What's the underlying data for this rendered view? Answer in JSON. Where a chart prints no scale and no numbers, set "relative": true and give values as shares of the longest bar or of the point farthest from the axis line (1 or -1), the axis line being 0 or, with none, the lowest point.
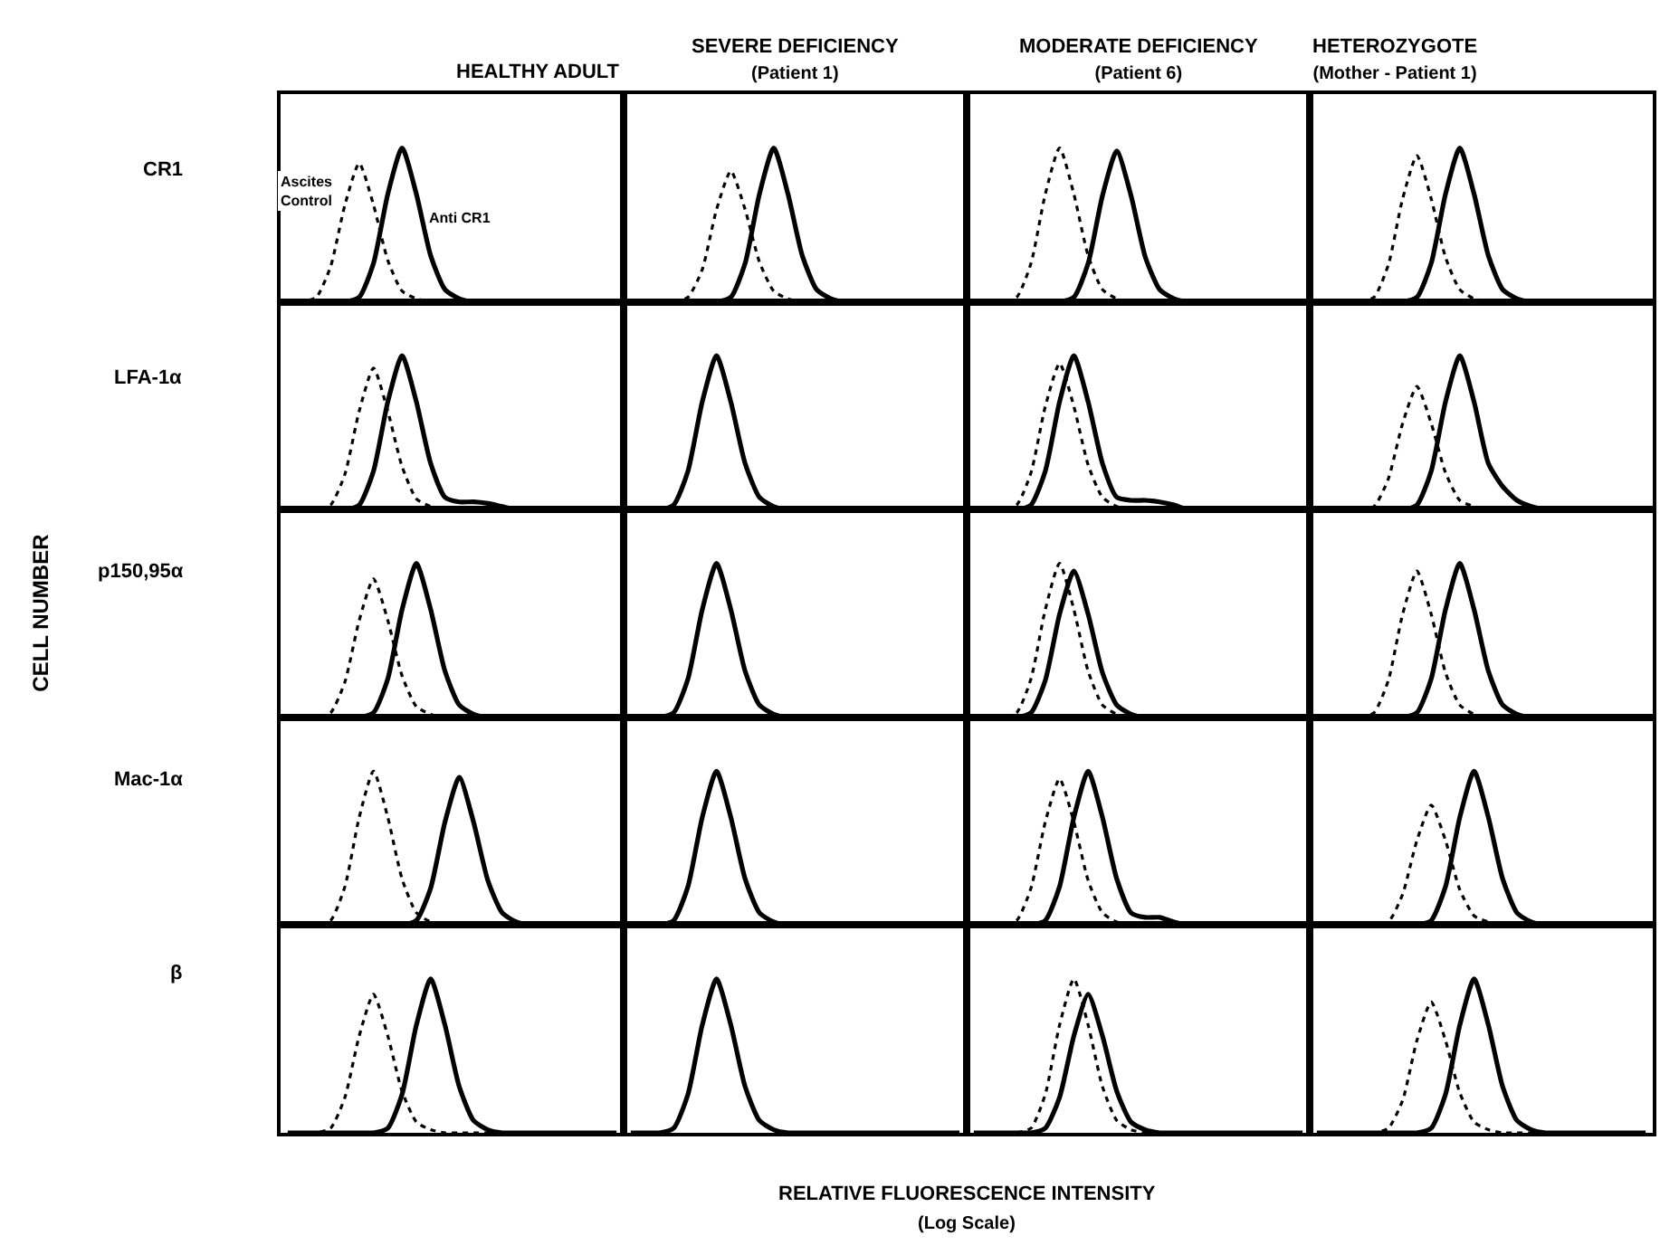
{
  "chart_data": [
    {
      "type": "line",
      "relative": true,
      "title": "HEALTHY ADULT",
      "ylabel": "CR1",
      "annotations": [
        "CELL NUMBER",
        "RELATIVE FLUORESCENCE INTENSITY",
        "(Log Scale)"
      ],
      "categories": [
        null,
        null,
        null,
        null,
        null,
        null,
        null,
        null,
        null,
        null,
        null,
        null,
        null,
        null,
        null,
        null,
        null,
        null,
        null,
        null,
        null,
        null,
        null,
        null
      ],
      "series": [
        {
          "name": "Ascites Control",
          "color": "#000000",
          "line_style": "dotted",
          "values": [
            0,
            0,
            0.03,
            0.23,
            0.63,
            0.9,
            0.63,
            0.27,
            0.07,
            0.02,
            0,
            0,
            0,
            0,
            0,
            0,
            0,
            0,
            0,
            0,
            0,
            0,
            0,
            0
          ]
        },
        {
          "name": "Anti CR1",
          "color": "#000000",
          "line_style": "solid",
          "values": [
            0,
            0,
            0,
            0,
            0,
            0.03,
            0.25,
            0.7,
            1,
            0.7,
            0.3,
            0.08,
            0.02,
            0,
            0,
            0,
            0,
            0,
            0,
            0,
            0,
            0,
            0,
            0
          ]
        }
      ]
    },
    {
      "type": "line",
      "relative": true,
      "title": "SEVERE DEFICIENCY",
      "subtitle": "(Patient 1)",
      "categories": [
        null,
        null,
        null,
        null,
        null,
        null,
        null,
        null,
        null,
        null,
        null,
        null,
        null,
        null,
        null,
        null,
        null,
        null,
        null,
        null,
        null,
        null,
        null,
        null
      ],
      "series": [
        {
          "color": "#000000",
          "line_style": "dotted",
          "values": [
            0,
            0,
            0,
            0,
            0.03,
            0.21,
            0.6,
            0.85,
            0.6,
            0.26,
            0.07,
            0.02,
            0,
            0,
            0,
            0,
            0,
            0,
            0,
            0,
            0,
            0,
            0,
            0
          ]
        },
        {
          "color": "#000000",
          "line_style": "solid",
          "values": [
            0,
            0,
            0,
            0,
            0,
            0,
            0,
            0.03,
            0.25,
            0.7,
            1,
            0.7,
            0.3,
            0.08,
            0.02,
            0,
            0,
            0,
            0,
            0,
            0,
            0,
            0,
            0
          ]
        }
      ]
    },
    {
      "type": "line",
      "relative": true,
      "title": "MODERATE DEFICIENCY",
      "subtitle": "(Patient 6)",
      "categories": [
        null,
        null,
        null,
        null,
        null,
        null,
        null,
        null,
        null,
        null,
        null,
        null,
        null,
        null,
        null,
        null,
        null,
        null,
        null,
        null,
        null,
        null,
        null,
        null
      ],
      "series": [
        {
          "color": "#000000",
          "line_style": "dotted",
          "values": [
            0,
            0,
            0,
            0.03,
            0.25,
            0.7,
            1,
            0.7,
            0.3,
            0.08,
            0.02,
            0,
            0,
            0,
            0,
            0,
            0,
            0,
            0,
            0,
            0,
            0,
            0,
            0
          ]
        },
        {
          "color": "#000000",
          "line_style": "solid",
          "values": [
            0,
            0,
            0,
            0,
            0,
            0,
            0,
            0.03,
            0.25,
            0.69,
            0.98,
            0.69,
            0.29,
            0.08,
            0.02,
            0,
            0,
            0,
            0,
            0,
            0,
            0,
            0,
            0
          ]
        }
      ]
    },
    {
      "type": "line",
      "relative": true,
      "title": "HETEROZYGOTE",
      "subtitle": "(Mother - Patient 1)",
      "categories": [
        null,
        null,
        null,
        null,
        null,
        null,
        null,
        null,
        null,
        null,
        null,
        null,
        null,
        null,
        null,
        null,
        null,
        null,
        null,
        null,
        null,
        null,
        null,
        null
      ],
      "series": [
        {
          "color": "#000000",
          "line_style": "dotted",
          "values": [
            0,
            0,
            0,
            0,
            0.03,
            0.24,
            0.67,
            0.95,
            0.67,
            0.29,
            0.08,
            0.02,
            0,
            0,
            0,
            0,
            0,
            0,
            0,
            0,
            0,
            0,
            0,
            0
          ]
        },
        {
          "color": "#000000",
          "line_style": "solid",
          "values": [
            0,
            0,
            0,
            0,
            0,
            0,
            0,
            0.03,
            0.25,
            0.7,
            1,
            0.7,
            0.3,
            0.08,
            0.02,
            0,
            0,
            0,
            0,
            0,
            0,
            0,
            0,
            0
          ]
        }
      ]
    },
    {
      "type": "line",
      "relative": true,
      "ylabel": "LFA-1α",
      "categories": [
        null,
        null,
        null,
        null,
        null,
        null,
        null,
        null,
        null,
        null,
        null,
        null,
        null,
        null,
        null,
        null,
        null,
        null,
        null,
        null,
        null,
        null,
        null,
        null
      ],
      "series": [
        {
          "color": "#000000",
          "line_style": "dotted",
          "values": [
            0,
            0,
            0,
            0.03,
            0.23,
            0.64,
            0.92,
            0.64,
            0.28,
            0.07,
            0.02,
            0,
            0,
            0,
            0,
            0,
            0,
            0,
            0,
            0,
            0,
            0,
            0,
            0
          ]
        },
        {
          "color": "#000000",
          "line_style": "solid",
          "values": [
            0,
            0,
            0,
            0,
            0,
            0.03,
            0.25,
            0.7,
            1,
            0.7,
            0.3,
            0.08,
            0.05,
            0.05,
            0.04,
            0.02,
            0,
            0,
            0,
            0,
            0,
            0,
            0,
            0
          ]
        }
      ]
    },
    {
      "type": "line",
      "relative": true,
      "categories": [
        null,
        null,
        null,
        null,
        null,
        null,
        null,
        null,
        null,
        null,
        null,
        null,
        null,
        null,
        null,
        null,
        null,
        null,
        null,
        null,
        null,
        null,
        null,
        null
      ],
      "series": [
        {
          "color": "#000000",
          "line_style": "solid",
          "values": [
            0,
            0,
            0,
            0.03,
            0.25,
            0.7,
            1,
            0.7,
            0.3,
            0.08,
            0.02,
            0,
            0,
            0,
            0,
            0,
            0,
            0,
            0,
            0,
            0,
            0,
            0,
            0
          ]
        }
      ]
    },
    {
      "type": "line",
      "relative": true,
      "categories": [
        null,
        null,
        null,
        null,
        null,
        null,
        null,
        null,
        null,
        null,
        null,
        null,
        null,
        null,
        null,
        null,
        null,
        null,
        null,
        null,
        null,
        null,
        null,
        null
      ],
      "series": [
        {
          "color": "#000000",
          "line_style": "dotted",
          "values": [
            0,
            0,
            0,
            0.03,
            0.24,
            0.67,
            0.95,
            0.67,
            0.29,
            0.08,
            0.02,
            0,
            0,
            0,
            0,
            0,
            0,
            0,
            0,
            0,
            0,
            0,
            0,
            0
          ]
        },
        {
          "color": "#000000",
          "line_style": "solid",
          "values": [
            0,
            0,
            0,
            0,
            0.03,
            0.25,
            0.7,
            1,
            0.7,
            0.3,
            0.08,
            0.06,
            0.06,
            0.05,
            0.03,
            0,
            0,
            0,
            0,
            0,
            0,
            0,
            0,
            0
          ]
        }
      ]
    },
    {
      "type": "line",
      "relative": true,
      "categories": [
        null,
        null,
        null,
        null,
        null,
        null,
        null,
        null,
        null,
        null,
        null,
        null,
        null,
        null,
        null,
        null,
        null,
        null,
        null,
        null,
        null,
        null,
        null,
        null
      ],
      "series": [
        {
          "color": "#000000",
          "line_style": "dotted",
          "values": [
            0,
            0,
            0,
            0,
            0.02,
            0.2,
            0.56,
            0.8,
            0.56,
            0.24,
            0.06,
            0.02,
            0,
            0,
            0,
            0,
            0,
            0,
            0,
            0,
            0,
            0,
            0,
            0
          ]
        },
        {
          "color": "#000000",
          "line_style": "solid",
          "values": [
            0,
            0,
            0,
            0,
            0,
            0,
            0,
            0.03,
            0.25,
            0.7,
            1,
            0.7,
            0.3,
            0.15,
            0.06,
            0.02,
            0,
            0,
            0,
            0,
            0,
            0,
            0,
            0
          ]
        }
      ]
    },
    {
      "type": "line",
      "relative": true,
      "ylabel": "p150,95α",
      "categories": [
        null,
        null,
        null,
        null,
        null,
        null,
        null,
        null,
        null,
        null,
        null,
        null,
        null,
        null,
        null,
        null,
        null,
        null,
        null,
        null,
        null,
        null,
        null,
        null
      ],
      "series": [
        {
          "color": "#000000",
          "line_style": "dotted",
          "values": [
            0,
            0,
            0,
            0.03,
            0.23,
            0.63,
            0.9,
            0.63,
            0.27,
            0.07,
            0.02,
            0,
            0,
            0,
            0,
            0,
            0,
            0,
            0,
            0,
            0,
            0,
            0,
            0
          ]
        },
        {
          "color": "#000000",
          "line_style": "solid",
          "values": [
            0,
            0,
            0,
            0,
            0,
            0,
            0.03,
            0.25,
            0.7,
            1,
            0.7,
            0.3,
            0.08,
            0.02,
            0,
            0,
            0,
            0,
            0,
            0,
            0,
            0,
            0,
            0
          ]
        }
      ]
    },
    {
      "type": "line",
      "relative": true,
      "categories": [
        null,
        null,
        null,
        null,
        null,
        null,
        null,
        null,
        null,
        null,
        null,
        null,
        null,
        null,
        null,
        null,
        null,
        null,
        null,
        null,
        null,
        null,
        null,
        null
      ],
      "series": [
        {
          "color": "#000000",
          "line_style": "solid",
          "values": [
            0,
            0,
            0,
            0.03,
            0.25,
            0.7,
            1,
            0.7,
            0.3,
            0.08,
            0.02,
            0,
            0,
            0,
            0,
            0,
            0,
            0,
            0,
            0,
            0,
            0,
            0,
            0
          ]
        }
      ]
    },
    {
      "type": "line",
      "relative": true,
      "categories": [
        null,
        null,
        null,
        null,
        null,
        null,
        null,
        null,
        null,
        null,
        null,
        null,
        null,
        null,
        null,
        null,
        null,
        null,
        null,
        null,
        null,
        null,
        null,
        null
      ],
      "series": [
        {
          "color": "#000000",
          "line_style": "dotted",
          "values": [
            0,
            0,
            0,
            0.03,
            0.25,
            0.7,
            1,
            0.7,
            0.3,
            0.08,
            0.02,
            0,
            0,
            0,
            0,
            0,
            0,
            0,
            0,
            0,
            0,
            0,
            0,
            0
          ]
        },
        {
          "color": "#000000",
          "line_style": "solid",
          "values": [
            0,
            0,
            0,
            0,
            0.03,
            0.24,
            0.67,
            0.95,
            0.67,
            0.29,
            0.08,
            0.02,
            0,
            0,
            0,
            0,
            0,
            0,
            0,
            0,
            0,
            0,
            0,
            0
          ]
        }
      ]
    },
    {
      "type": "line",
      "relative": true,
      "categories": [
        null,
        null,
        null,
        null,
        null,
        null,
        null,
        null,
        null,
        null,
        null,
        null,
        null,
        null,
        null,
        null,
        null,
        null,
        null,
        null,
        null,
        null,
        null,
        null
      ],
      "series": [
        {
          "color": "#000000",
          "line_style": "dotted",
          "values": [
            0,
            0,
            0,
            0,
            0.03,
            0.24,
            0.67,
            0.95,
            0.67,
            0.29,
            0.08,
            0.02,
            0,
            0,
            0,
            0,
            0,
            0,
            0,
            0,
            0,
            0,
            0,
            0
          ]
        },
        {
          "color": "#000000",
          "line_style": "solid",
          "values": [
            0,
            0,
            0,
            0,
            0,
            0,
            0,
            0.03,
            0.25,
            0.7,
            1,
            0.7,
            0.3,
            0.08,
            0.02,
            0,
            0,
            0,
            0,
            0,
            0,
            0,
            0,
            0
          ]
        }
      ]
    },
    {
      "type": "line",
      "relative": true,
      "ylabel": "Mac-1α",
      "categories": [
        null,
        null,
        null,
        null,
        null,
        null,
        null,
        null,
        null,
        null,
        null,
        null,
        null,
        null,
        null,
        null,
        null,
        null,
        null,
        null,
        null,
        null,
        null,
        null
      ],
      "series": [
        {
          "color": "#000000",
          "line_style": "dotted",
          "values": [
            0,
            0,
            0,
            0.03,
            0.25,
            0.7,
            1,
            0.7,
            0.3,
            0.08,
            0.02,
            0,
            0,
            0,
            0,
            0,
            0,
            0,
            0,
            0,
            0,
            0,
            0,
            0
          ]
        },
        {
          "color": "#000000",
          "line_style": "solid",
          "values": [
            0,
            0,
            0,
            0,
            0,
            0,
            0,
            0,
            0,
            0.03,
            0.24,
            0.67,
            0.96,
            0.67,
            0.29,
            0.08,
            0.02,
            0,
            0,
            0,
            0,
            0,
            0,
            0
          ]
        }
      ]
    },
    {
      "type": "line",
      "relative": true,
      "categories": [
        null,
        null,
        null,
        null,
        null,
        null,
        null,
        null,
        null,
        null,
        null,
        null,
        null,
        null,
        null,
        null,
        null,
        null,
        null,
        null,
        null,
        null,
        null,
        null
      ],
      "series": [
        {
          "color": "#000000",
          "line_style": "solid",
          "values": [
            0,
            0,
            0,
            0.03,
            0.25,
            0.7,
            1,
            0.7,
            0.3,
            0.08,
            0.02,
            0,
            0,
            0,
            0,
            0,
            0,
            0,
            0,
            0,
            0,
            0,
            0,
            0
          ]
        }
      ]
    },
    {
      "type": "line",
      "relative": true,
      "categories": [
        null,
        null,
        null,
        null,
        null,
        null,
        null,
        null,
        null,
        null,
        null,
        null,
        null,
        null,
        null,
        null,
        null,
        null,
        null,
        null,
        null,
        null,
        null,
        null
      ],
      "series": [
        {
          "color": "#000000",
          "line_style": "dotted",
          "values": [
            0,
            0,
            0,
            0.03,
            0.24,
            0.67,
            0.95,
            0.67,
            0.29,
            0.08,
            0.02,
            0,
            0,
            0,
            0,
            0,
            0,
            0,
            0,
            0,
            0,
            0,
            0,
            0
          ]
        },
        {
          "color": "#000000",
          "line_style": "solid",
          "values": [
            0,
            0,
            0,
            0,
            0,
            0.03,
            0.25,
            0.7,
            1,
            0.7,
            0.3,
            0.08,
            0.05,
            0.05,
            0.02,
            0,
            0,
            0,
            0,
            0,
            0,
            0,
            0,
            0
          ]
        }
      ]
    },
    {
      "type": "line",
      "relative": true,
      "categories": [
        null,
        null,
        null,
        null,
        null,
        null,
        null,
        null,
        null,
        null,
        null,
        null,
        null,
        null,
        null,
        null,
        null,
        null,
        null,
        null,
        null,
        null,
        null,
        null
      ],
      "series": [
        {
          "color": "#000000",
          "line_style": "dotted",
          "values": [
            0,
            0,
            0,
            0,
            0,
            0.02,
            0.2,
            0.55,
            0.78,
            0.55,
            0.23,
            0.06,
            0.02,
            0,
            0,
            0,
            0,
            0,
            0,
            0,
            0,
            0,
            0,
            0
          ]
        },
        {
          "color": "#000000",
          "line_style": "solid",
          "values": [
            0,
            0,
            0,
            0,
            0,
            0,
            0,
            0,
            0.03,
            0.25,
            0.7,
            1,
            0.7,
            0.3,
            0.08,
            0.02,
            0,
            0,
            0,
            0,
            0,
            0,
            0,
            0
          ]
        }
      ]
    },
    {
      "type": "line",
      "relative": true,
      "ylabel": "β",
      "categories": [
        null,
        null,
        null,
        null,
        null,
        null,
        null,
        null,
        null,
        null,
        null,
        null,
        null,
        null,
        null,
        null,
        null,
        null,
        null,
        null,
        null,
        null,
        null,
        null
      ],
      "series": [
        {
          "color": "#000000",
          "line_style": "dotted",
          "values": [
            0,
            0,
            0,
            0.03,
            0.23,
            0.63,
            0.9,
            0.63,
            0.27,
            0.07,
            0.02,
            0,
            0,
            0,
            0,
            0,
            0,
            0,
            0,
            0,
            0,
            0,
            0,
            0
          ]
        },
        {
          "color": "#000000",
          "line_style": "solid",
          "values": [
            0,
            0,
            0,
            0,
            0,
            0,
            0,
            0.03,
            0.25,
            0.7,
            1,
            0.7,
            0.3,
            0.08,
            0.02,
            0,
            0,
            0,
            0,
            0,
            0,
            0,
            0,
            0
          ]
        }
      ]
    },
    {
      "type": "line",
      "relative": true,
      "categories": [
        null,
        null,
        null,
        null,
        null,
        null,
        null,
        null,
        null,
        null,
        null,
        null,
        null,
        null,
        null,
        null,
        null,
        null,
        null,
        null,
        null,
        null,
        null,
        null
      ],
      "series": [
        {
          "color": "#000000",
          "line_style": "solid",
          "values": [
            0,
            0,
            0,
            0.03,
            0.25,
            0.7,
            1,
            0.7,
            0.3,
            0.08,
            0.02,
            0,
            0,
            0,
            0,
            0,
            0,
            0,
            0,
            0,
            0,
            0,
            0,
            0
          ]
        }
      ]
    },
    {
      "type": "line",
      "relative": true,
      "categories": [
        null,
        null,
        null,
        null,
        null,
        null,
        null,
        null,
        null,
        null,
        null,
        null,
        null,
        null,
        null,
        null,
        null,
        null,
        null,
        null,
        null,
        null,
        null,
        null
      ],
      "series": [
        {
          "color": "#000000",
          "line_style": "dotted",
          "values": [
            0,
            0,
            0,
            0,
            0.03,
            0.25,
            0.7,
            1,
            0.7,
            0.3,
            0.08,
            0.02,
            0,
            0,
            0,
            0,
            0,
            0,
            0,
            0,
            0,
            0,
            0,
            0
          ]
        },
        {
          "color": "#000000",
          "line_style": "solid",
          "values": [
            0,
            0,
            0,
            0,
            0,
            0.03,
            0.23,
            0.63,
            0.9,
            0.63,
            0.27,
            0.07,
            0.02,
            0,
            0,
            0,
            0,
            0,
            0,
            0,
            0,
            0,
            0,
            0
          ]
        }
      ]
    },
    {
      "type": "line",
      "relative": true,
      "categories": [
        null,
        null,
        null,
        null,
        null,
        null,
        null,
        null,
        null,
        null,
        null,
        null,
        null,
        null,
        null,
        null,
        null,
        null,
        null,
        null,
        null,
        null,
        null,
        null
      ],
      "series": [
        {
          "color": "#000000",
          "line_style": "dotted",
          "values": [
            0,
            0,
            0,
            0,
            0,
            0.03,
            0.21,
            0.6,
            0.85,
            0.6,
            0.26,
            0.07,
            0.02,
            0,
            0,
            0,
            0,
            0,
            0,
            0,
            0,
            0,
            0,
            0
          ]
        },
        {
          "color": "#000000",
          "line_style": "solid",
          "values": [
            0,
            0,
            0,
            0,
            0,
            0,
            0,
            0,
            0.03,
            0.25,
            0.7,
            1,
            0.7,
            0.3,
            0.08,
            0.02,
            0,
            0,
            0,
            0,
            0,
            0,
            0,
            0
          ]
        }
      ]
    }
  ]
}
